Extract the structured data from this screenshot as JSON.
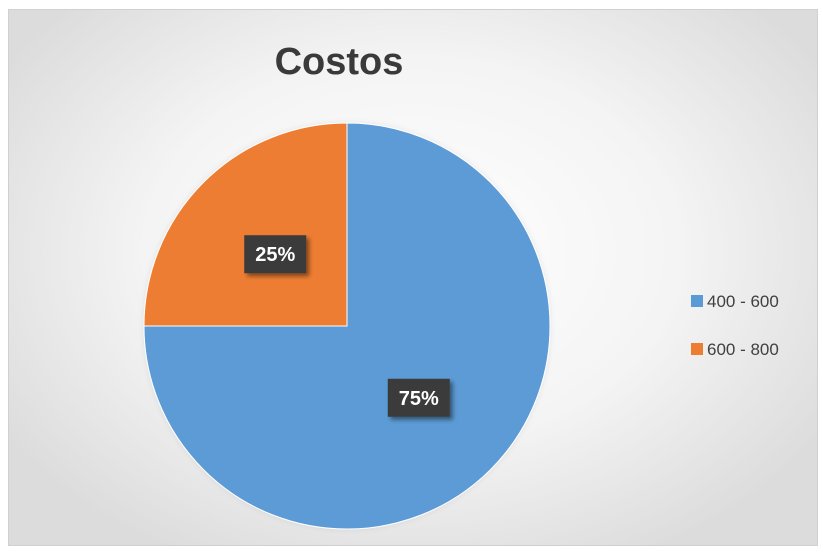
{
  "chart_data": {
    "type": "pie",
    "title": "Costos",
    "categories": [
      "400 - 600",
      "600 - 800"
    ],
    "values": [
      75,
      25
    ],
    "data_labels": [
      "75%",
      "25%"
    ],
    "colors": [
      "#5b9bd5",
      "#ed7d31"
    ],
    "legend_position": "right",
    "start_angle": "12 o'clock, clockwise"
  }
}
